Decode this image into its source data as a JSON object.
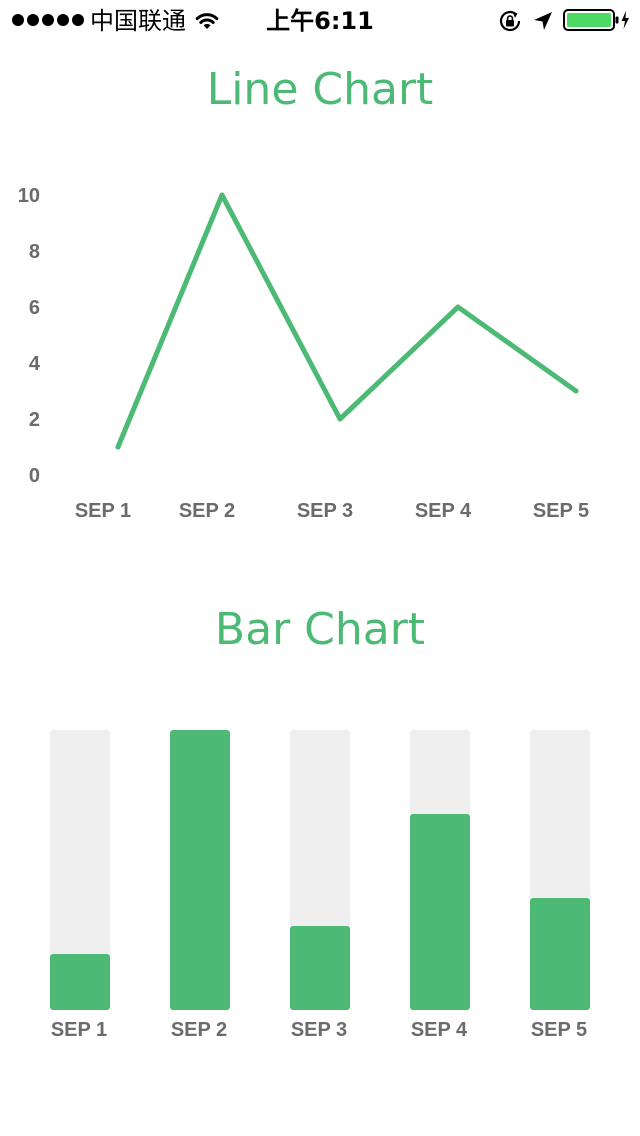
{
  "status_bar": {
    "carrier": "中国联通",
    "time": "上午6:11",
    "signal_dots": 5,
    "battery_color": "#4cd964"
  },
  "colors": {
    "accent": "#4cb975",
    "bar_track": "#efefef",
    "axis_label": "#6b6b6b"
  },
  "chart_data": [
    {
      "type": "line",
      "title": "Line Chart",
      "categories": [
        "SEP 1",
        "SEP 2",
        "SEP 3",
        "SEP 4",
        "SEP 5"
      ],
      "values": [
        1,
        10,
        2,
        6,
        3
      ],
      "y_ticks": [
        0,
        2,
        4,
        6,
        8,
        10
      ],
      "ylim": [
        0,
        10
      ],
      "grid": false,
      "xlabel": "",
      "ylabel": ""
    },
    {
      "type": "bar",
      "title": "Bar Chart",
      "categories": [
        "SEP 1",
        "SEP 2",
        "SEP 3",
        "SEP 4",
        "SEP 5"
      ],
      "values": [
        0.2,
        1.0,
        0.3,
        0.7,
        0.4
      ],
      "ylim": [
        0,
        1
      ],
      "grid": false,
      "xlabel": "",
      "ylabel": ""
    }
  ]
}
